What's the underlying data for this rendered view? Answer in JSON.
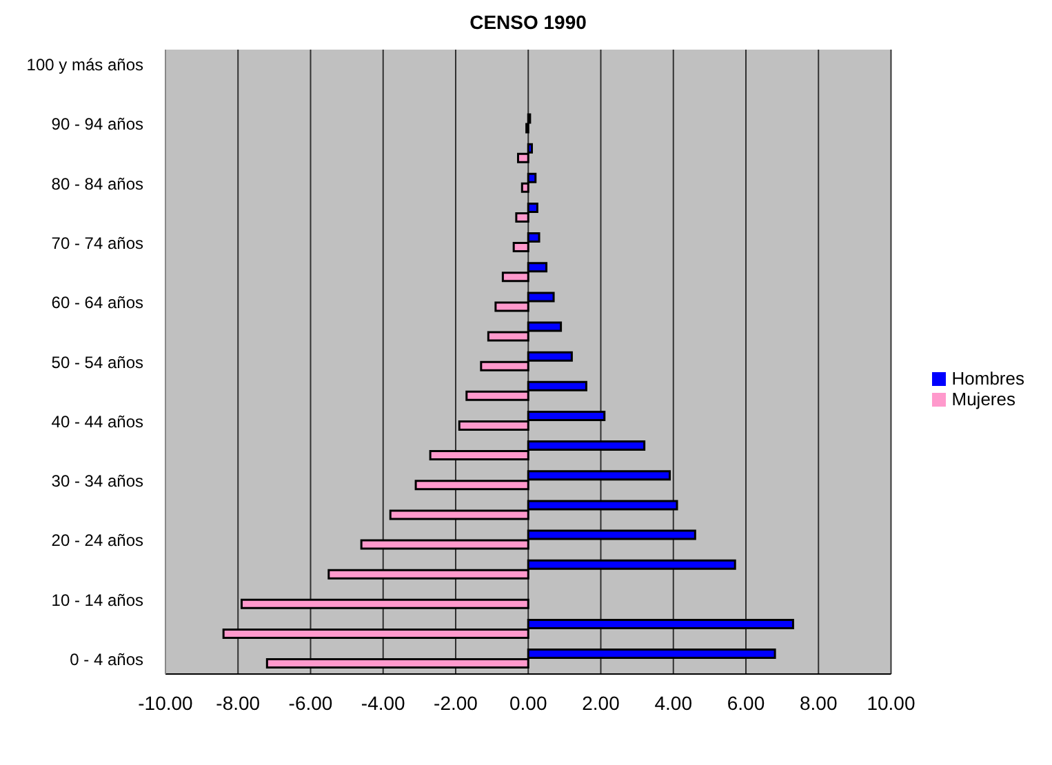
{
  "chart_data": {
    "type": "bar",
    "orientation": "horizontal",
    "title": "CENSO 1990",
    "categories": [
      "100 y más años",
      null,
      "90 - 94 años",
      null,
      "80 - 84 años",
      null,
      "70 - 74 años",
      null,
      "60 - 64 años",
      null,
      "50 - 54 años",
      null,
      "40 - 44 años",
      null,
      "30 - 34 años",
      null,
      "20 - 24 años",
      null,
      "10 - 14 años",
      null,
      "0 - 4 años"
    ],
    "series": [
      {
        "name": "Hombres",
        "color": "#0000ff",
        "values": [
          null,
          null,
          0.05,
          0.1,
          0.2,
          0.25,
          0.3,
          0.5,
          0.7,
          0.9,
          1.2,
          1.6,
          2.1,
          3.2,
          3.9,
          4.1,
          4.6,
          5.7,
          null,
          7.3,
          6.8
        ]
      },
      {
        "name": "Mujeres",
        "color": "#ff99cc",
        "values": [
          null,
          null,
          -0.05,
          -0.28,
          -0.17,
          -0.33,
          -0.4,
          -0.7,
          -0.9,
          -1.1,
          -1.3,
          -1.7,
          -1.9,
          -2.7,
          -3.1,
          -3.8,
          -4.6,
          -5.5,
          -7.9,
          -8.4,
          -7.2
        ]
      }
    ],
    "xlim": [
      -10,
      10
    ],
    "xticks": [
      {
        "value": -10,
        "label": "-10.00"
      },
      {
        "value": -8,
        "label": "-8.00"
      },
      {
        "value": -6,
        "label": "-6.00"
      },
      {
        "value": -4,
        "label": "-4.00"
      },
      {
        "value": -2,
        "label": "-2.00"
      },
      {
        "value": 0,
        "label": "0.00"
      },
      {
        "value": 2,
        "label": "2.00"
      },
      {
        "value": 4,
        "label": "4.00"
      },
      {
        "value": 6,
        "label": "6.00"
      },
      {
        "value": 8,
        "label": "8.00"
      },
      {
        "value": 10,
        "label": "10.00"
      }
    ],
    "grid": "x",
    "legend": "right"
  }
}
